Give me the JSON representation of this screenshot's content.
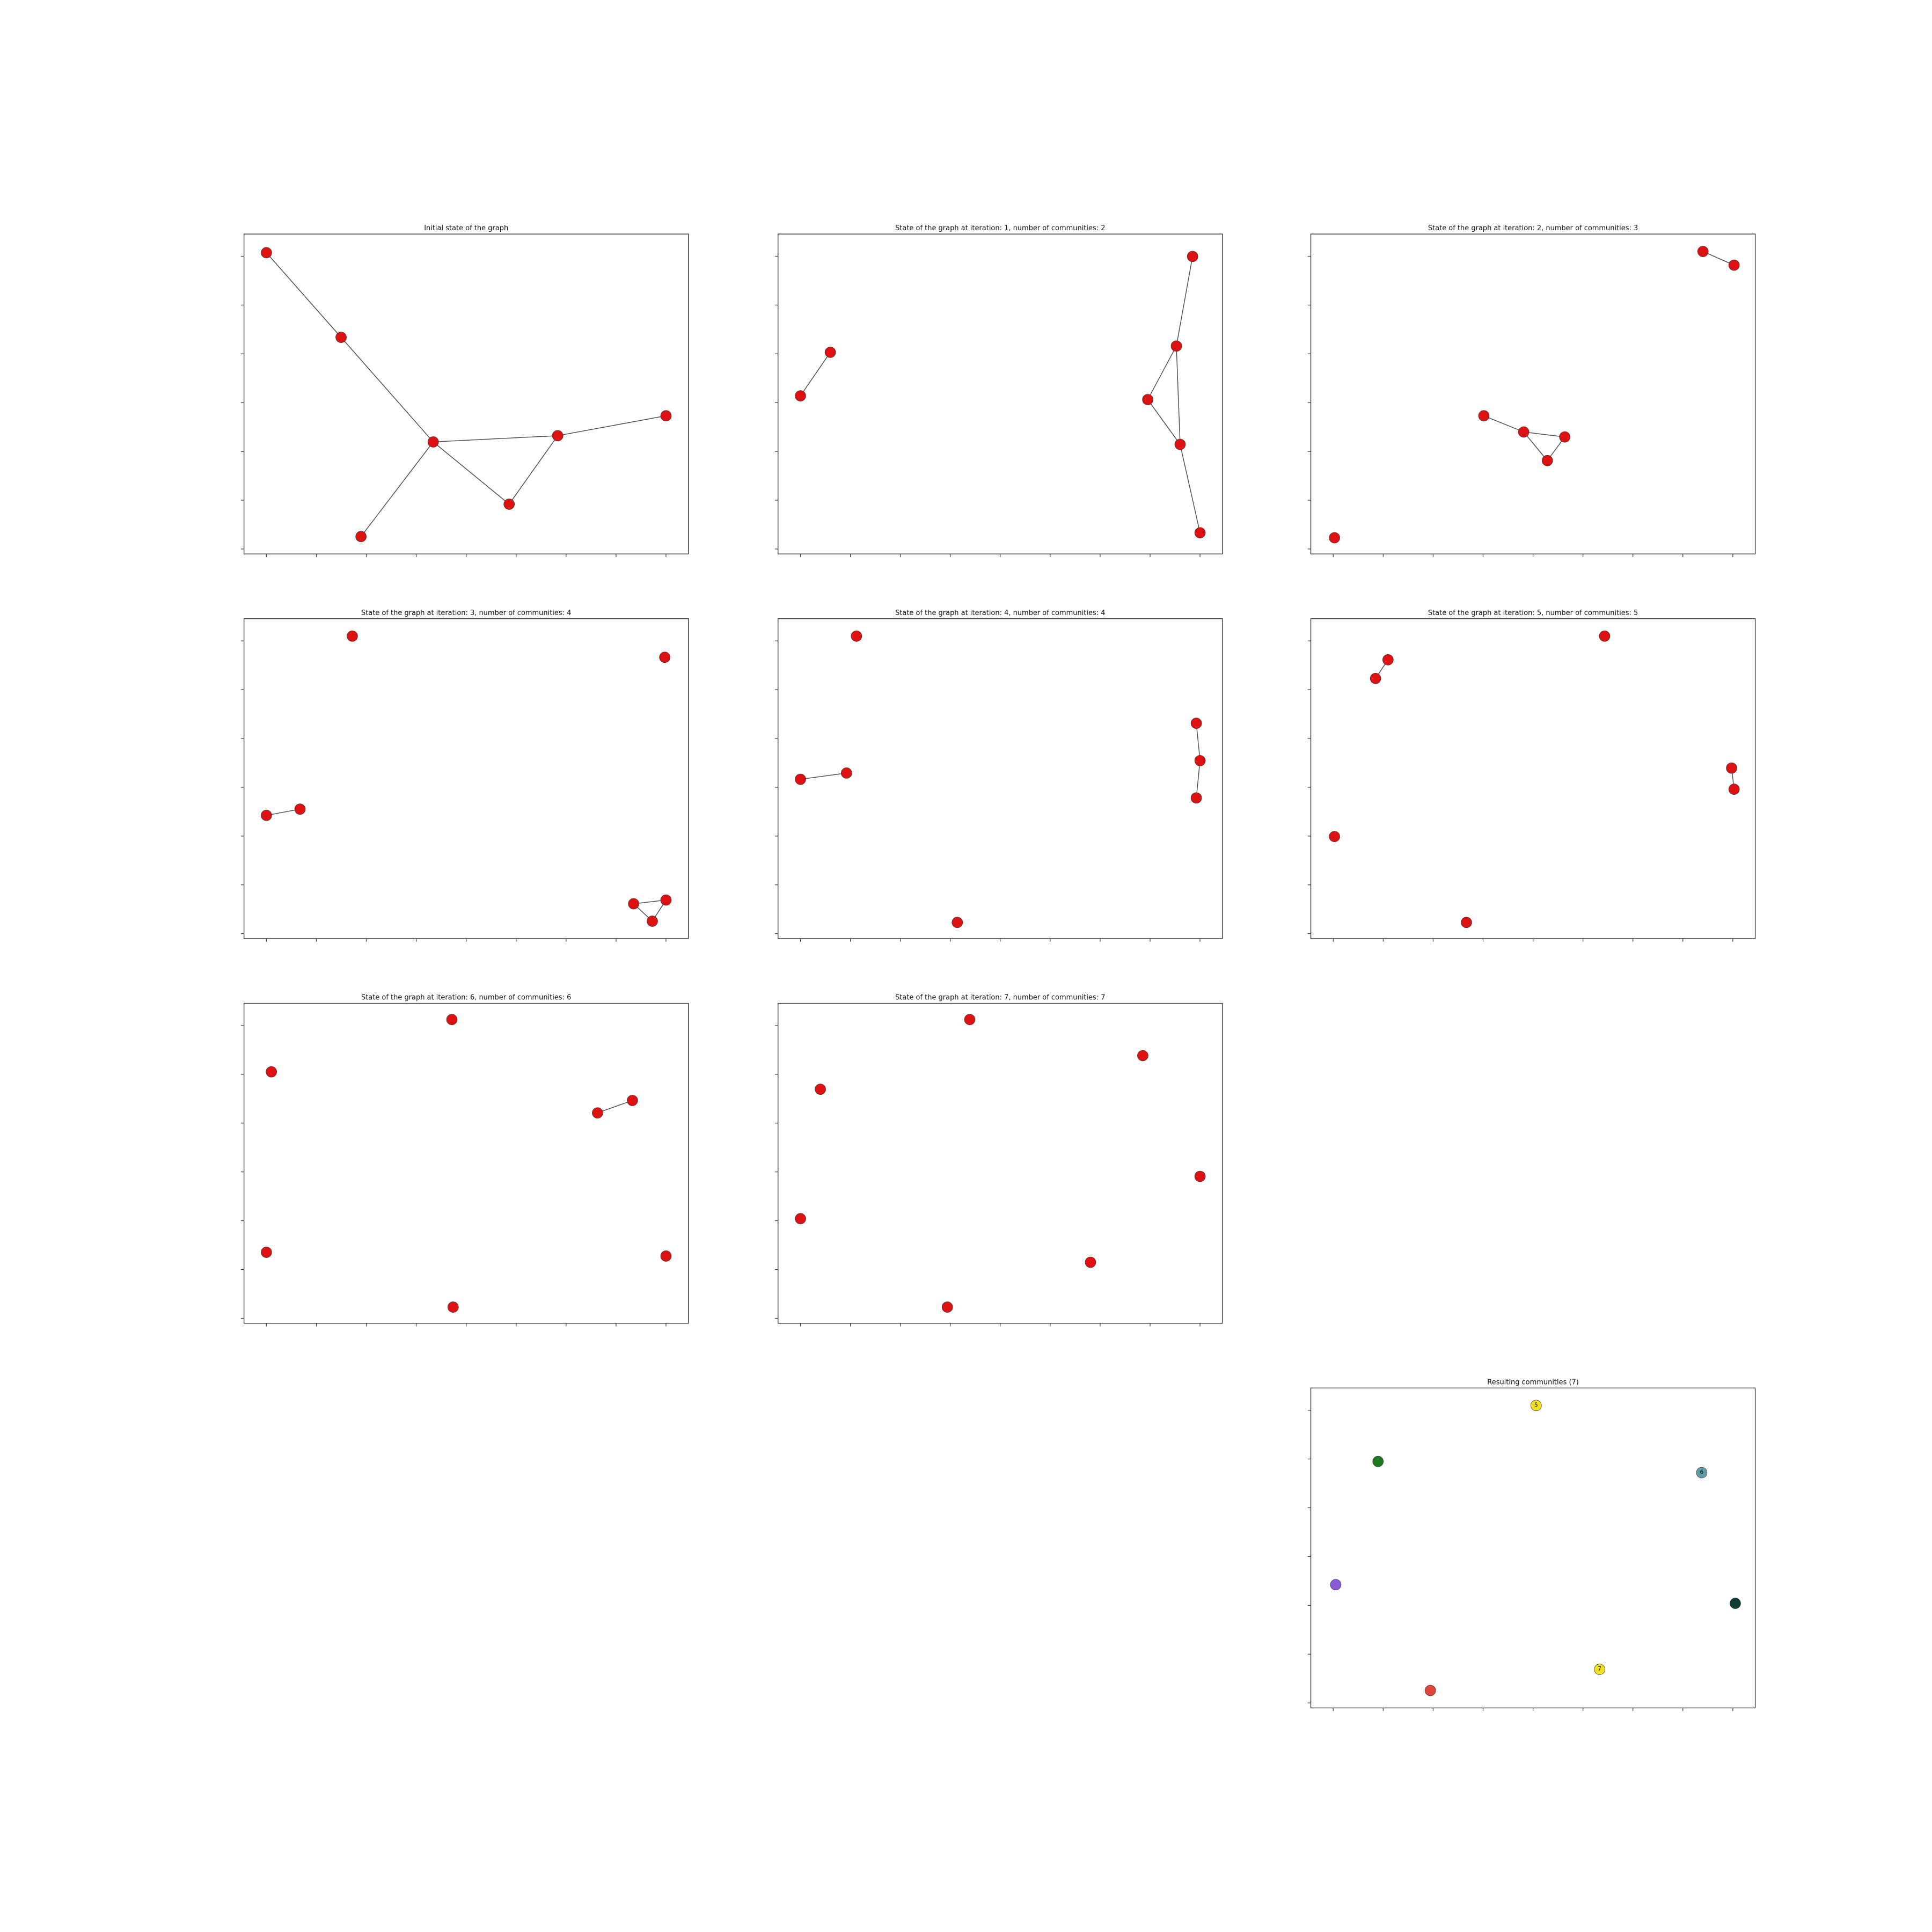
{
  "panels": [
    {
      "title": "Initial state of the graph"
    },
    {
      "title": "State of the graph at iteration: 1, number of communities: 2"
    },
    {
      "title": "State of the graph at iteration: 2, number of communities: 3"
    },
    {
      "title": "State of the graph at iteration: 3, number of communities: 4"
    },
    {
      "title": "State of the graph at iteration: 4, number of communities: 4"
    },
    {
      "title": "State of the graph at iteration: 5, number of communities: 5"
    },
    {
      "title": "State of the graph at iteration: 6, number of communities: 6"
    },
    {
      "title": "State of the graph at iteration: 7, number of communities: 7"
    },
    {
      "title": "Resulting communities (7)",
      "node_labels": [
        "5",
        "6",
        "7"
      ]
    }
  ]
}
